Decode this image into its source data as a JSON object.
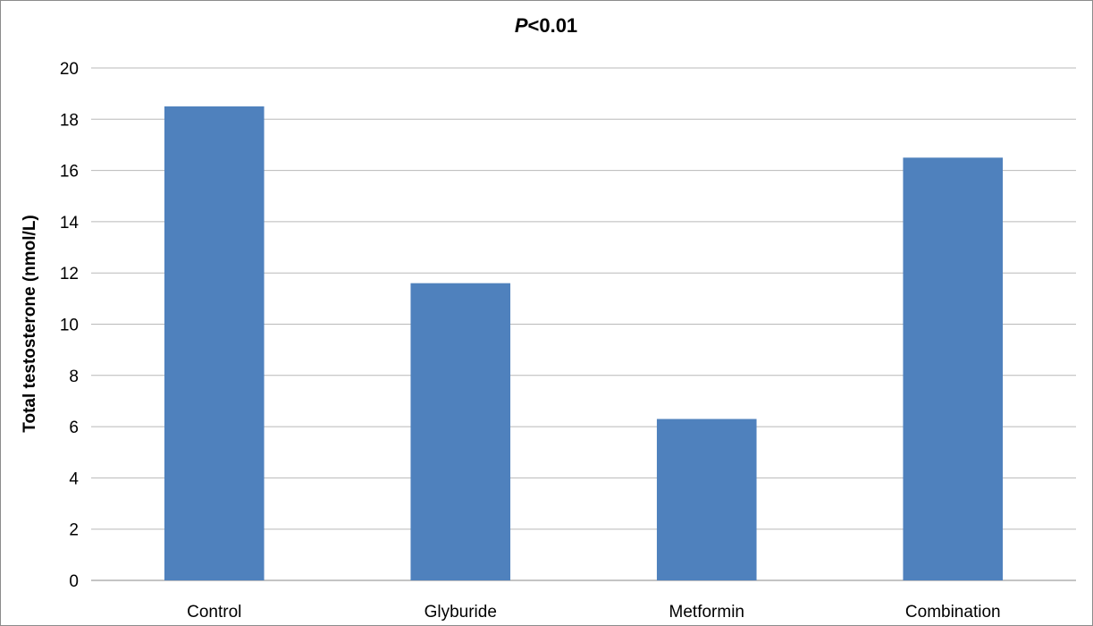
{
  "chart_data": {
    "type": "bar",
    "title_italic": "P",
    "title_rest": "<0.01",
    "categories": [
      "Control",
      "Glyburide",
      "Metformin",
      "Combination"
    ],
    "values": [
      18.5,
      11.6,
      6.3,
      16.5
    ],
    "ylabel": "Total testosterone (nmol/L)",
    "xlabel": "",
    "ylim": [
      0,
      20
    ],
    "yticks": [
      0,
      2,
      4,
      6,
      8,
      10,
      12,
      14,
      16,
      18,
      20
    ],
    "grid": true,
    "bar_color": "#4f81bd"
  }
}
